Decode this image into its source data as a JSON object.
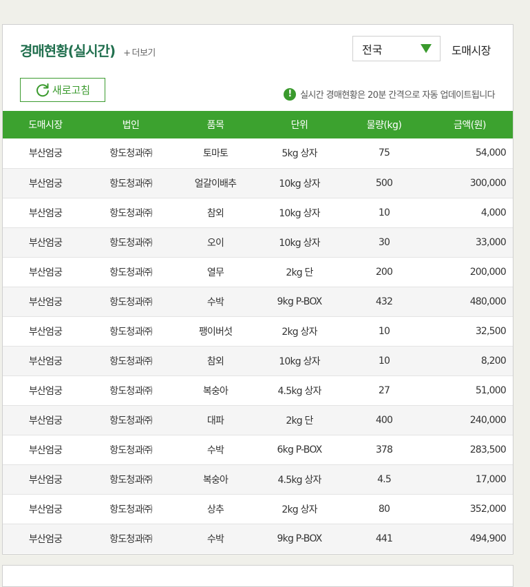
{
  "header": {
    "title": "경매현황(실시간)",
    "more_plus": "+",
    "more_label": "더보기",
    "region_value": "전국",
    "market_label": "도매시장"
  },
  "toolbar": {
    "refresh_label": "새로고침",
    "notice_icon": "!",
    "notice_text": "실시간 경매현황은 20분 간격으로 자동 업데이트됩니다"
  },
  "colors": {
    "accent": "#3ca22f",
    "title": "#22704f"
  },
  "table": {
    "columns": [
      "도매시장",
      "법인",
      "품목",
      "단위",
      "물량(kg)",
      "금액(원)"
    ],
    "rows": [
      [
        "부산엄궁",
        "항도청과㈜",
        "토마토",
        "5kg 상자",
        "75",
        "54,000"
      ],
      [
        "부산엄궁",
        "항도청과㈜",
        "얼갈이배추",
        "10kg 상자",
        "500",
        "300,000"
      ],
      [
        "부산엄궁",
        "항도청과㈜",
        "참외",
        "10kg 상자",
        "10",
        "4,000"
      ],
      [
        "부산엄궁",
        "항도청과㈜",
        "오이",
        "10kg 상자",
        "30",
        "33,000"
      ],
      [
        "부산엄궁",
        "항도청과㈜",
        "열무",
        "2kg 단",
        "200",
        "200,000"
      ],
      [
        "부산엄궁",
        "항도청과㈜",
        "수박",
        "9kg P-BOX",
        "432",
        "480,000"
      ],
      [
        "부산엄궁",
        "항도청과㈜",
        "팽이버섯",
        "2kg 상자",
        "10",
        "32,500"
      ],
      [
        "부산엄궁",
        "항도청과㈜",
        "참외",
        "10kg 상자",
        "10",
        "8,200"
      ],
      [
        "부산엄궁",
        "항도청과㈜",
        "복숭아",
        "4.5kg 상자",
        "27",
        "51,000"
      ],
      [
        "부산엄궁",
        "항도청과㈜",
        "대파",
        "2kg 단",
        "400",
        "240,000"
      ],
      [
        "부산엄궁",
        "항도청과㈜",
        "수박",
        "6kg P-BOX",
        "378",
        "283,500"
      ],
      [
        "부산엄궁",
        "항도청과㈜",
        "복숭아",
        "4.5kg 상자",
        "4.5",
        "17,000"
      ],
      [
        "부산엄궁",
        "항도청과㈜",
        "상추",
        "2kg 상자",
        "80",
        "352,000"
      ],
      [
        "부산엄궁",
        "항도청과㈜",
        "수박",
        "9kg P-BOX",
        "441",
        "494,900"
      ]
    ]
  }
}
